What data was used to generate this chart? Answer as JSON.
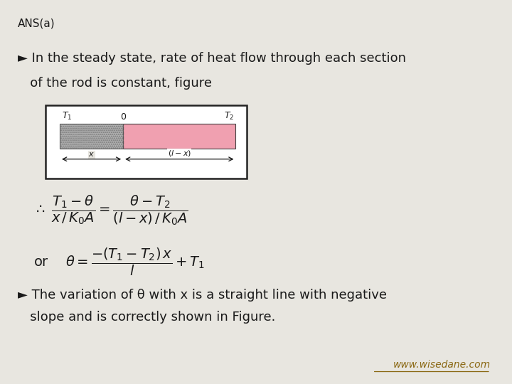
{
  "background_color": "#e8e6e0",
  "title_text": "ANS(a)",
  "title_fontsize": 11,
  "title_color": "#222222",
  "bullet1_line1": "► In the steady state, rate of heat flow through each section",
  "bullet1_line2": "   of the rod is constant, figure",
  "bullet2_line1": "► The variation of θ with x is a straight line with negative",
  "bullet2_line2": "   slope and is correctly shown in Figure.",
  "website": "www.wisedane.com",
  "website_color": "#8B6914",
  "text_color": "#1a1a1a",
  "body_fontsize": 13,
  "formula_fontsize": 14,
  "gray_section_color": "#b0b0b0",
  "pink_section_color": "#f0a0b0",
  "rod_border_color": "#222222"
}
